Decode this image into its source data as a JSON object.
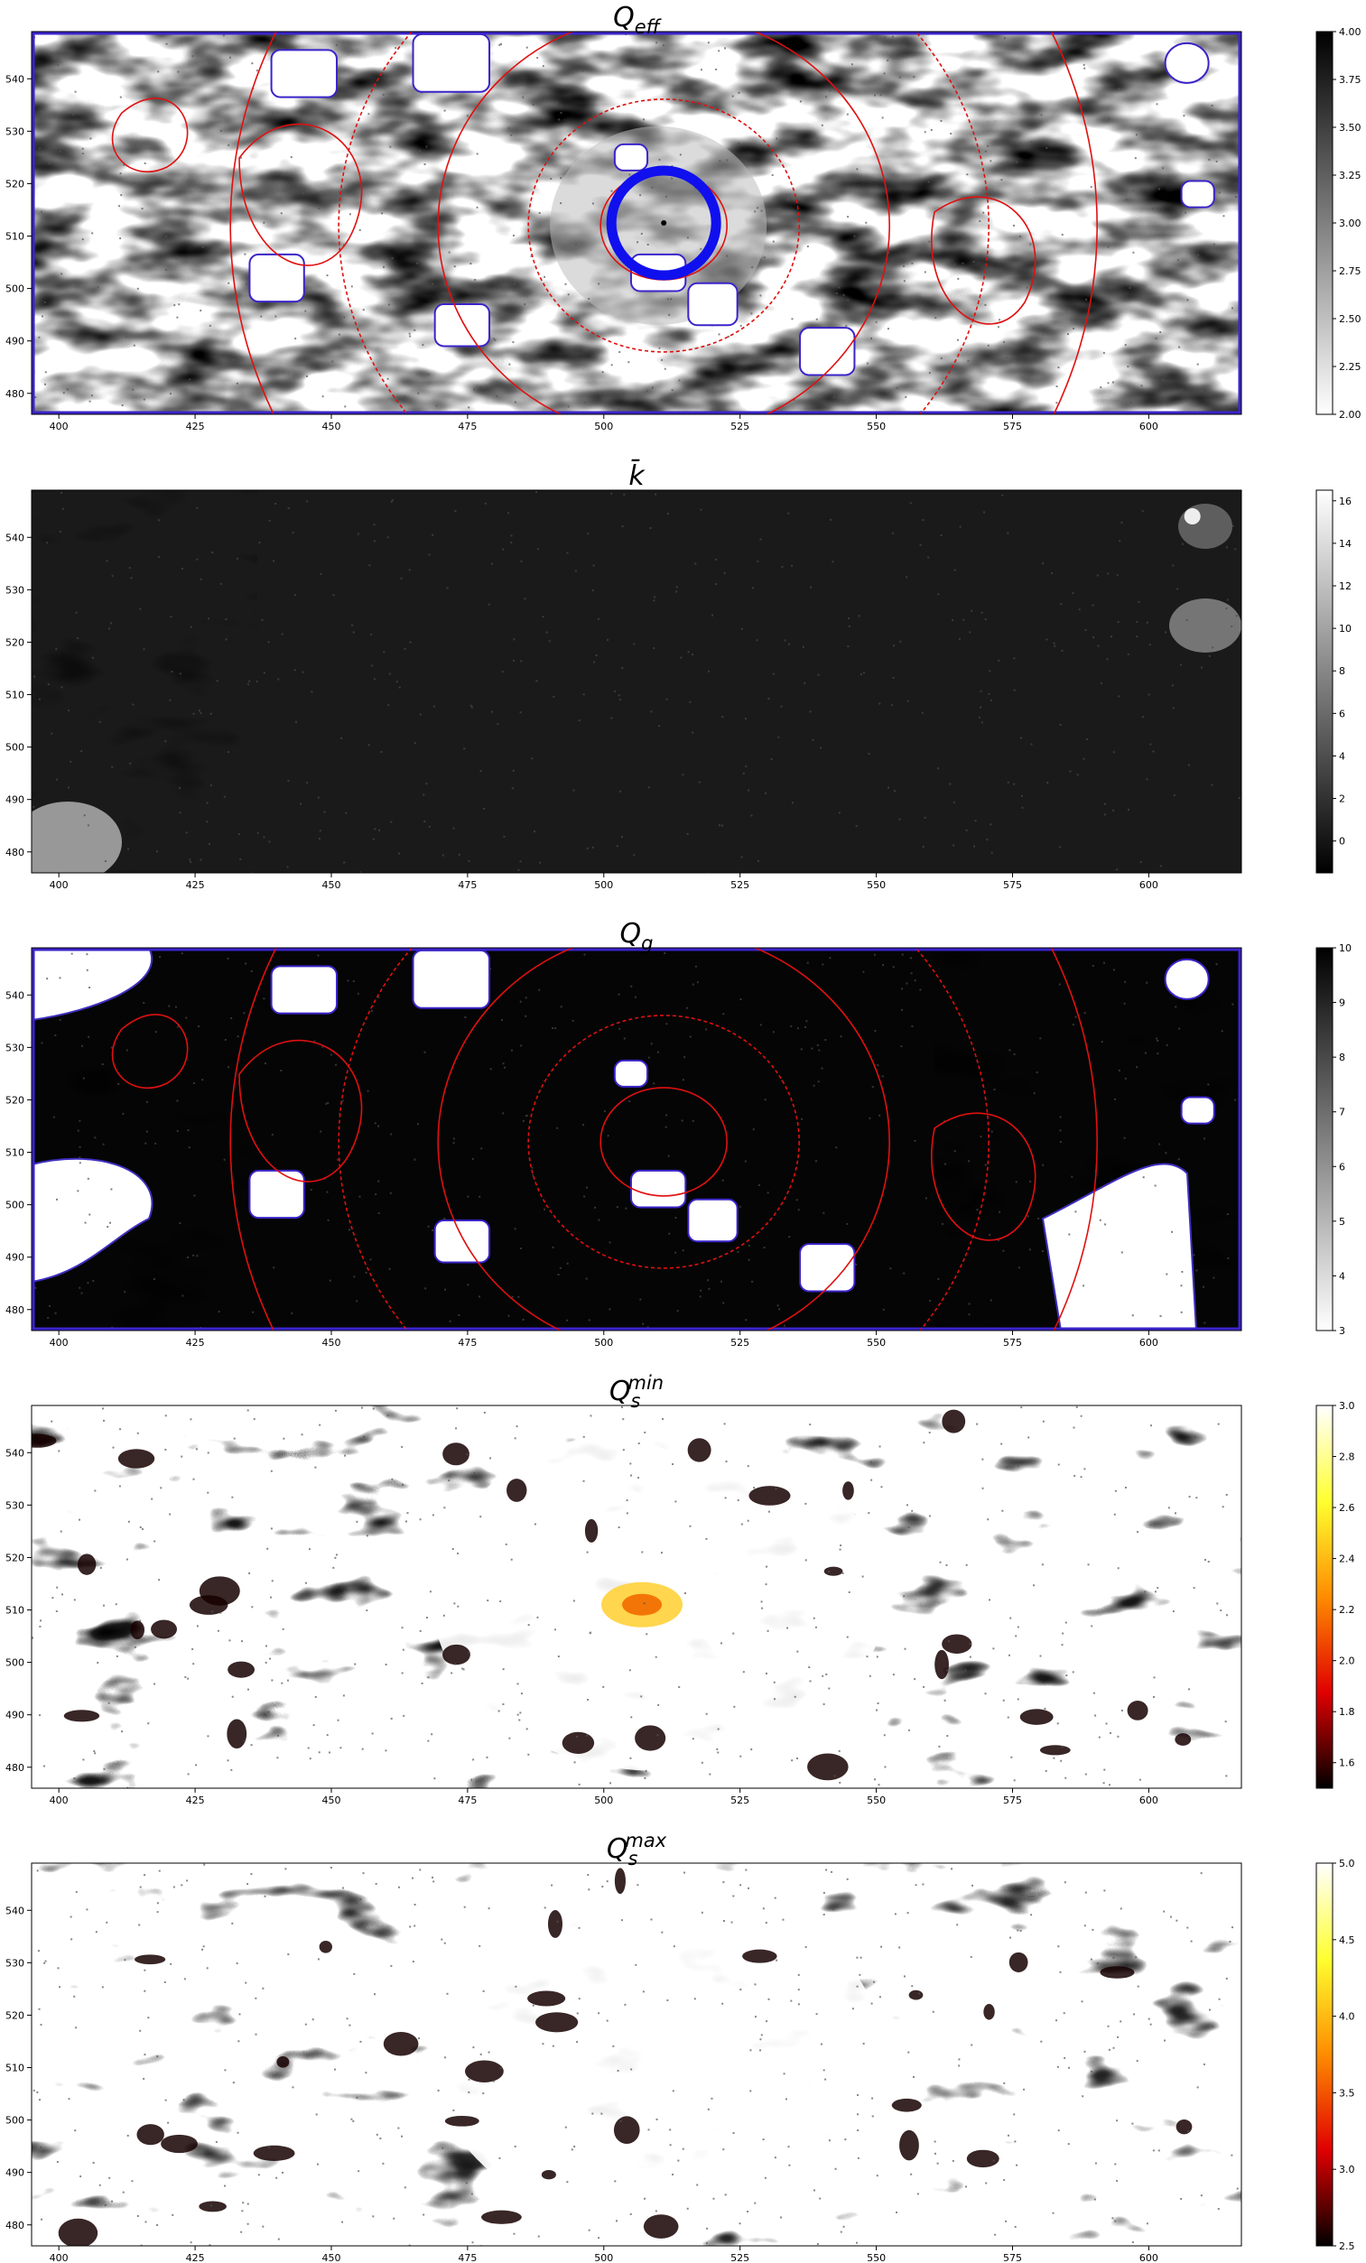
{
  "chart_data": [
    {
      "type": "heatmap",
      "title": "Q_eff",
      "title_main": "Q",
      "title_sub": "eff",
      "title_sup": "",
      "cmap": "gray_r",
      "xlim": [
        395,
        617
      ],
      "ylim": [
        476,
        549
      ],
      "xticks": [
        400,
        425,
        450,
        475,
        500,
        525,
        550,
        575,
        600
      ],
      "yticks": [
        480,
        490,
        500,
        510,
        520,
        530,
        540
      ],
      "colorbar": {
        "range": [
          2.0,
          4.0
        ],
        "ticks": [
          "2.00",
          "2.25",
          "2.50",
          "2.75",
          "3.00",
          "3.25",
          "3.50",
          "3.75",
          "4.00"
        ],
        "stops": [
          "#ffffff",
          "#000000"
        ]
      },
      "overlays": [
        "red-contours",
        "blue-masked-regions",
        "blue-circle-center"
      ]
    },
    {
      "type": "heatmap",
      "title": "k̄",
      "title_main": "k̄",
      "title_sub": "",
      "title_sup": "",
      "cmap": "gray",
      "xlim": [
        395,
        617
      ],
      "ylim": [
        476,
        549
      ],
      "xticks": [
        400,
        425,
        450,
        475,
        500,
        525,
        550,
        575,
        600
      ],
      "yticks": [
        480,
        490,
        500,
        510,
        520,
        530,
        540
      ],
      "colorbar": {
        "range": [
          -1.5,
          16.5
        ],
        "ticks": [
          "0",
          "2",
          "4",
          "6",
          "8",
          "10",
          "12",
          "14",
          "16"
        ],
        "stops": [
          "#000000",
          "#ffffff"
        ]
      },
      "overlays": []
    },
    {
      "type": "heatmap",
      "title": "Q_g",
      "title_main": "Q",
      "title_sub": "g",
      "title_sup": "",
      "cmap": "gray_r",
      "xlim": [
        395,
        617
      ],
      "ylim": [
        476,
        549
      ],
      "xticks": [
        400,
        425,
        450,
        475,
        500,
        525,
        550,
        575,
        600
      ],
      "yticks": [
        480,
        490,
        500,
        510,
        520,
        530,
        540
      ],
      "colorbar": {
        "range": [
          3,
          10
        ],
        "ticks": [
          "3",
          "4",
          "5",
          "6",
          "7",
          "8",
          "9",
          "10"
        ],
        "stops": [
          "#ffffff",
          "#000000"
        ]
      },
      "overlays": [
        "red-contours",
        "blue-masked-regions"
      ]
    },
    {
      "type": "heatmap",
      "title": "Q_s^min",
      "title_main": "Q",
      "title_sub": "s",
      "title_sup": "min",
      "cmap": "hot",
      "xlim": [
        395,
        617
      ],
      "ylim": [
        476,
        549
      ],
      "xticks": [
        400,
        425,
        450,
        475,
        500,
        525,
        550,
        575,
        600
      ],
      "yticks": [
        480,
        490,
        500,
        510,
        520,
        530,
        540
      ],
      "colorbar": {
        "range": [
          1.5,
          3.0
        ],
        "ticks": [
          "1.6",
          "1.8",
          "2.0",
          "2.2",
          "2.4",
          "2.6",
          "2.8",
          "3.0"
        ],
        "stops": [
          "#000000",
          "#e00000",
          "#ff8c00",
          "#ffff30",
          "#ffffff"
        ]
      },
      "overlays": []
    },
    {
      "type": "heatmap",
      "title": "Q_s^max",
      "title_main": "Q",
      "title_sub": "s",
      "title_sup": "max",
      "cmap": "hot",
      "xlim": [
        395,
        617
      ],
      "ylim": [
        476,
        549
      ],
      "xticks": [
        400,
        425,
        450,
        475,
        500,
        525,
        550,
        575,
        600
      ],
      "yticks": [
        480,
        490,
        500,
        510,
        520,
        530,
        540
      ],
      "colorbar": {
        "range": [
          2.5,
          5.0
        ],
        "ticks": [
          "2.5",
          "3.0",
          "3.5",
          "4.0",
          "4.5",
          "5.0"
        ],
        "stops": [
          "#000000",
          "#e00000",
          "#ff8c00",
          "#ffff30",
          "#ffffff"
        ]
      },
      "overlays": []
    }
  ]
}
